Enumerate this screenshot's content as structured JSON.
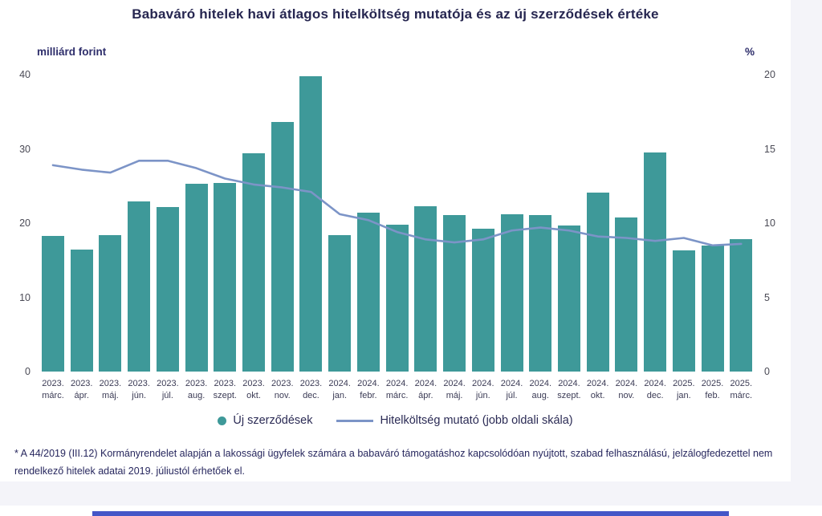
{
  "page": {
    "title": "Babaváró hitelek havi átlagos hitelköltség mutatója és az új szerződések értéke",
    "footnote": "* A 44/2019 (III.12) Kormányrendelet alapján a lakossági ügyfelek számára a babaváró támogatáshoz kapcsolódóan nyújtott, szabad felhasználású, jelzálogfedezettel nem rendelkező hitelek adatai 2019. júliustól érhetőek el.",
    "colors": {
      "bar": "#3e9999",
      "line": "#7c94c7",
      "accent_bar": "#4456c7"
    }
  },
  "chart_data": {
    "type": "bar",
    "subtype": "bar+line dual axis combo",
    "title": "Babaváró hitelek havi átlagos hitelköltség mutatója és az új szerződések értéke",
    "categories": [
      "2023. márc.",
      "2023. ápr.",
      "2023. máj.",
      "2023. jún.",
      "2023. júl.",
      "2023. aug.",
      "2023. szept.",
      "2023. okt.",
      "2023. nov.",
      "2023. dec.",
      "2024. jan.",
      "2024. febr.",
      "2024. márc.",
      "2024. ápr.",
      "2024. máj.",
      "2024. jún.",
      "2024. júl.",
      "2024. aug.",
      "2024. szept.",
      "2024. okt.",
      "2024. nov.",
      "2024. dec.",
      "2025. jan.",
      "2025. feb.",
      "2025. márc."
    ],
    "series": [
      {
        "name": "Új szerződések",
        "type": "bar",
        "axis": "left",
        "color": "#3e9999",
        "values": [
          18.3,
          16.4,
          18.4,
          22.9,
          22.2,
          25.3,
          25.4,
          29.4,
          33.6,
          39.8,
          18.4,
          21.4,
          19.8,
          22.3,
          21.1,
          19.2,
          21.2,
          21.1,
          19.7,
          24.1,
          20.8,
          29.5,
          16.3,
          17.0,
          17.8
        ]
      },
      {
        "name": "Hitelköltség mutató (jobb oldali skála)",
        "type": "line",
        "axis": "right",
        "color": "#7c94c7",
        "values": [
          13.9,
          13.6,
          13.4,
          14.2,
          14.2,
          13.7,
          13.0,
          12.6,
          12.4,
          12.1,
          10.6,
          10.2,
          9.4,
          8.9,
          8.7,
          8.9,
          9.5,
          9.7,
          9.5,
          9.1,
          9.0,
          8.8,
          9.0,
          8.5,
          8.6
        ]
      }
    ],
    "left_axis": {
      "label": "milliárd forint",
      "ticks": [
        0,
        10,
        20,
        30,
        40
      ],
      "min": 0,
      "max": 40
    },
    "right_axis": {
      "label": "%",
      "ticks": [
        0,
        5,
        10,
        15,
        20
      ],
      "min": 0,
      "max": 20
    },
    "legend_position": "bottom-center",
    "grid": false
  }
}
